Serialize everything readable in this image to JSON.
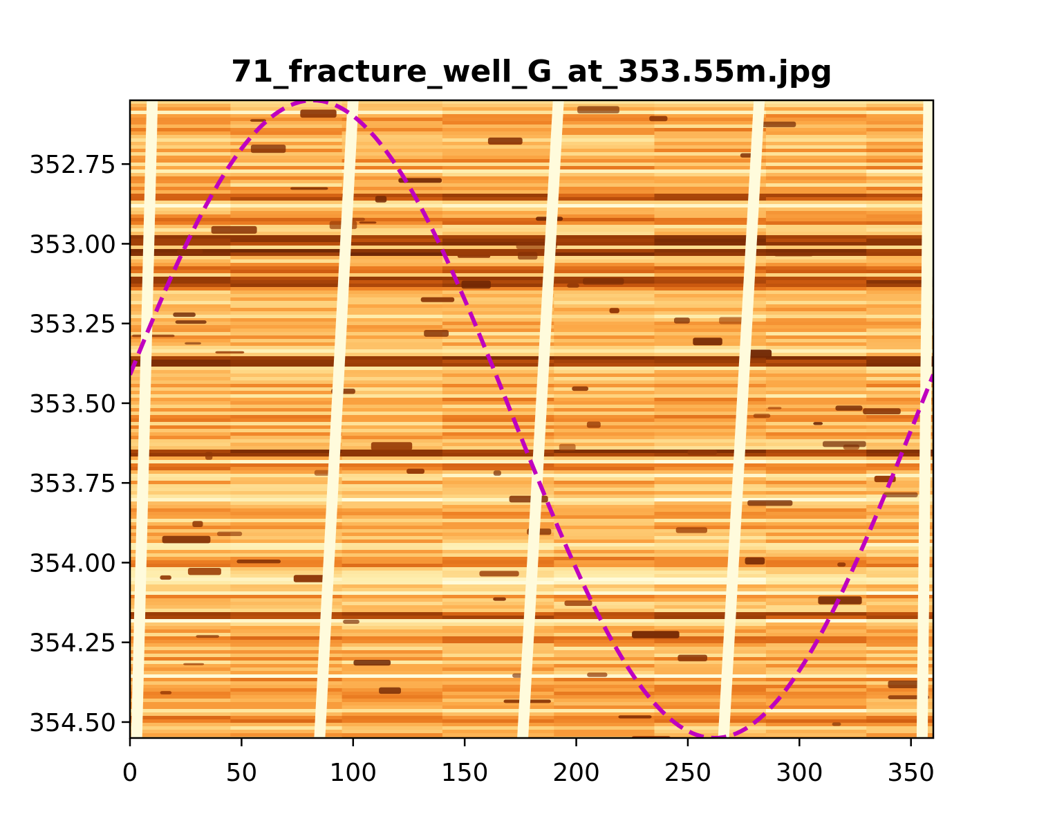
{
  "chart_data": {
    "type": "heatmap",
    "title": "71_fracture_well_G_at_353.55m.jpg",
    "xlabel": "",
    "ylabel": "",
    "xlim": [
      0,
      360
    ],
    "ylim": [
      354.55,
      352.55
    ],
    "y_inverted": true,
    "colormap": "YlOrBr",
    "x_ticks": [
      0,
      50,
      100,
      150,
      200,
      250,
      300,
      350
    ],
    "x_tick_labels": [
      "0",
      "50",
      "100",
      "150",
      "200",
      "250",
      "300",
      "350"
    ],
    "y_ticks": [
      352.75,
      353.0,
      353.25,
      353.5,
      353.75,
      354.0,
      354.25,
      354.5
    ],
    "y_tick_labels": [
      "352.75",
      "353.00",
      "353.25",
      "353.50",
      "353.75",
      "354.00",
      "354.25",
      "354.50"
    ],
    "sinusoid": {
      "style": "dashed",
      "color": "#bf00bf",
      "center_depth": 353.55,
      "amplitude": 1.0,
      "min_depth_azimuth": 82,
      "max_depth_azimuth": 262
    },
    "pad_stripes": [
      {
        "x_top": 10,
        "x_bottom": 3
      },
      {
        "x_top": 100,
        "x_bottom": 85
      },
      {
        "x_top": 192,
        "x_bottom": 176
      },
      {
        "x_top": 282,
        "x_bottom": 266
      },
      {
        "x_top": 358,
        "x_bottom": 355
      }
    ],
    "dark_bands": [
      {
        "depth": 352.85,
        "darkness": 0.75
      },
      {
        "depth": 352.93,
        "darkness": 0.6
      },
      {
        "depth": 352.99,
        "darkness": 0.85
      },
      {
        "depth": 353.03,
        "darkness": 0.9
      },
      {
        "depth": 353.08,
        "darkness": 0.65
      },
      {
        "depth": 353.12,
        "darkness": 0.8
      },
      {
        "depth": 353.37,
        "darkness": 0.85
      },
      {
        "depth": 353.55,
        "darkness": 0.55
      },
      {
        "depth": 353.66,
        "darkness": 0.85
      },
      {
        "depth": 353.7,
        "darkness": 0.6
      },
      {
        "depth": 354.0,
        "darkness": 0.55
      },
      {
        "depth": 354.17,
        "darkness": 0.75
      },
      {
        "depth": 354.24,
        "darkness": 0.6
      },
      {
        "depth": 354.4,
        "darkness": 0.5
      },
      {
        "depth": 354.49,
        "darkness": 0.6
      }
    ]
  }
}
